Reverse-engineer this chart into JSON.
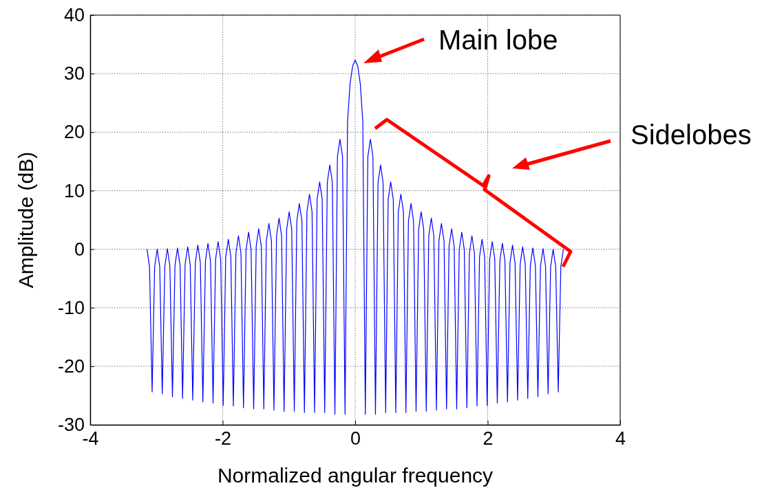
{
  "chart_data": {
    "type": "line",
    "xlabel": "Normalized angular frequency",
    "ylabel": "Amplitude (dB)",
    "xlim": [
      -4,
      4
    ],
    "xticks": [
      -4,
      -2,
      0,
      2,
      4
    ],
    "ylim": [
      -30,
      40
    ],
    "yticks": [
      -30,
      -20,
      -10,
      0,
      10,
      20,
      30,
      40
    ],
    "grid": true,
    "marker": "none",
    "line_style": "solid",
    "annotations": [
      "Main lobe",
      "Sidelobes"
    ],
    "x": [
      -3.142,
      -3.104,
      -3.065,
      -3.027,
      -2.988,
      -2.95,
      -2.912,
      -2.873,
      -2.835,
      -2.797,
      -2.758,
      -2.72,
      -2.682,
      -2.643,
      -2.605,
      -2.567,
      -2.528,
      -2.49,
      -2.452,
      -2.413,
      -2.375,
      -2.337,
      -2.299,
      -2.26,
      -2.222,
      -2.184,
      -2.145,
      -2.107,
      -2.069,
      -2.03,
      -1.992,
      -1.954,
      -1.915,
      -1.877,
      -1.839,
      -1.8,
      -1.762,
      -1.724,
      -1.686,
      -1.647,
      -1.609,
      -1.571,
      -1.532,
      -1.494,
      -1.456,
      -1.417,
      -1.379,
      -1.341,
      -1.302,
      -1.264,
      -1.226,
      -1.187,
      -1.149,
      -1.111,
      -1.073,
      -1.034,
      -0.996,
      -0.958,
      -0.919,
      -0.881,
      -0.843,
      -0.804,
      -0.766,
      -0.728,
      -0.69,
      -0.651,
      -0.613,
      -0.575,
      -0.536,
      -0.498,
      -0.46,
      -0.421,
      -0.383,
      -0.345,
      -0.306,
      -0.268,
      -0.23,
      -0.191,
      -0.153,
      -0.115,
      -0.077,
      -0.038,
      0,
      0.038,
      0.077,
      0.115,
      0.153,
      0.191,
      0.23,
      0.268,
      0.306,
      0.345,
      0.383,
      0.421,
      0.46,
      0.498,
      0.536,
      0.575,
      0.613,
      0.651,
      0.69,
      0.728,
      0.766,
      0.804,
      0.843,
      0.881,
      0.919,
      0.958,
      0.996,
      1.034,
      1.073,
      1.111,
      1.149,
      1.187,
      1.226,
      1.264,
      1.302,
      1.341,
      1.379,
      1.417,
      1.456,
      1.494,
      1.532,
      1.571,
      1.609,
      1.647,
      1.686,
      1.724,
      1.762,
      1.8,
      1.839,
      1.877,
      1.915,
      1.954,
      1.992,
      2.03,
      2.069,
      2.107,
      2.145,
      2.184,
      2.222,
      2.26,
      2.299,
      2.337,
      2.375,
      2.413,
      2.452,
      2.49,
      2.528,
      2.567,
      2.605,
      2.643,
      2.682,
      2.72,
      2.758,
      2.797,
      2.835,
      2.873,
      2.912,
      2.95,
      2.988,
      3.027,
      3.065,
      3.104,
      3.142
    ],
    "series": [
      {
        "color": "#0000ff",
        "values": [
          0.0,
          -3.0,
          -24.4,
          -3.0,
          0.0,
          -3.0,
          -24.7,
          -2.9,
          0.1,
          -2.9,
          -25.2,
          -2.8,
          0.2,
          -2.8,
          -25.5,
          -2.6,
          0.4,
          -2.6,
          -25.8,
          -2.3,
          0.7,
          -2.3,
          -26.1,
          -2.0,
          1.0,
          -2.0,
          -26.3,
          -1.7,
          1.3,
          -1.7,
          -26.7,
          -1.3,
          1.7,
          -1.3,
          -26.8,
          -0.7,
          2.3,
          -0.7,
          -27.1,
          -0.1,
          2.9,
          -0.1,
          -27.3,
          0.5,
          3.5,
          0.5,
          -27.3,
          1.4,
          4.4,
          1.4,
          -27.5,
          2.3,
          5.3,
          2.3,
          -27.7,
          3.4,
          6.4,
          3.4,
          -27.7,
          4.8,
          7.8,
          4.8,
          -27.9,
          6.4,
          9.4,
          6.4,
          -27.9,
          8.5,
          11.5,
          8.5,
          -27.9,
          11.4,
          14.4,
          11.4,
          -28.2,
          15.8,
          18.8,
          15.8,
          -28.2,
          21.8,
          28.3,
          31.3,
          32.3,
          31.3,
          28.3,
          21.8,
          -28.2,
          15.8,
          18.8,
          15.8,
          -28.2,
          11.4,
          14.4,
          11.4,
          -27.9,
          8.5,
          11.5,
          8.5,
          -27.9,
          6.4,
          9.4,
          6.4,
          -27.9,
          4.8,
          7.8,
          4.8,
          -27.7,
          3.4,
          6.4,
          3.4,
          -27.7,
          2.3,
          5.3,
          2.3,
          -27.5,
          1.4,
          4.4,
          1.4,
          -27.3,
          0.5,
          3.5,
          0.5,
          -27.3,
          -0.1,
          2.9,
          -0.1,
          -27.1,
          -0.7,
          2.3,
          -0.7,
          -26.8,
          -1.3,
          1.7,
          -1.3,
          -26.7,
          -1.7,
          1.3,
          -1.7,
          -26.3,
          -2.0,
          1.0,
          -2.0,
          -26.1,
          -2.3,
          0.7,
          -2.3,
          -25.8,
          -2.6,
          0.4,
          -2.6,
          -25.5,
          -2.8,
          0.2,
          -2.8,
          -25.2,
          -2.9,
          0.1,
          -2.9,
          -24.7,
          -3.0,
          0.0,
          -3.0,
          -24.4,
          -3.0,
          0.0
        ]
      }
    ]
  }
}
